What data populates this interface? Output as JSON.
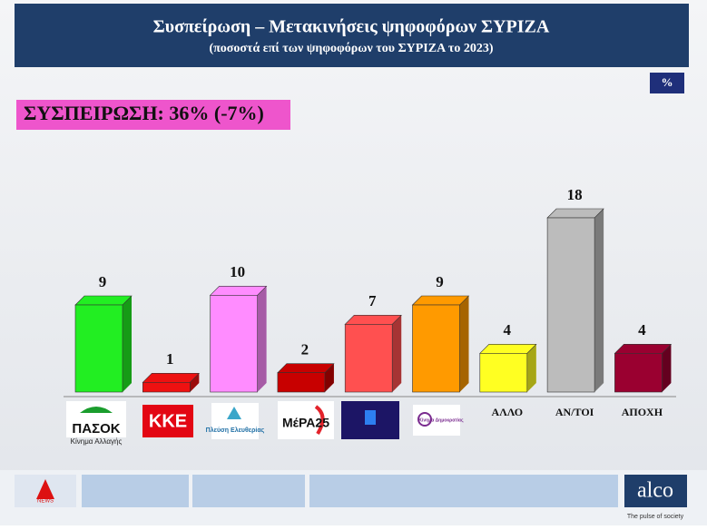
{
  "header": {
    "title": "Συσπείρωση – Μετακινήσεις ψηφοφόρων ΣΥΡΙΖΑ",
    "subtitle": "(ποσοστά επί των ψηφοφόρων του ΣΥΡΙΖΑ το 2023)"
  },
  "unit_badge": "%",
  "highlight": "ΣΥΣΠΕΙΡΩΣΗ: 36% (-7%)",
  "chart_data": {
    "type": "bar3d",
    "categories": [
      "ΠΑΣΟΚ",
      "ΚΚΕ",
      "Πλεύση Ελευθερίας",
      "ΜέΡΑ25",
      null,
      "Κίνημα Δημοκρατίας",
      "ΑΛΛΟ",
      "ΑΝ/ΤΟΙ",
      "ΑΠΟΧΗ"
    ],
    "pasok_tagline": "Κίνημα Αλλαγής",
    "values": [
      9,
      1,
      10,
      2,
      7,
      9,
      4,
      18,
      4
    ],
    "colors": [
      "#22ee22",
      "#ee1111",
      "#ff8cff",
      "#c80000",
      "#ff5050",
      "#ff9a00",
      "#ffff22",
      "#bcbcbc",
      "#9a0030"
    ]
  },
  "footer": {
    "brand": "alco",
    "tagline": "The pulse of society",
    "news": "NEWS"
  }
}
